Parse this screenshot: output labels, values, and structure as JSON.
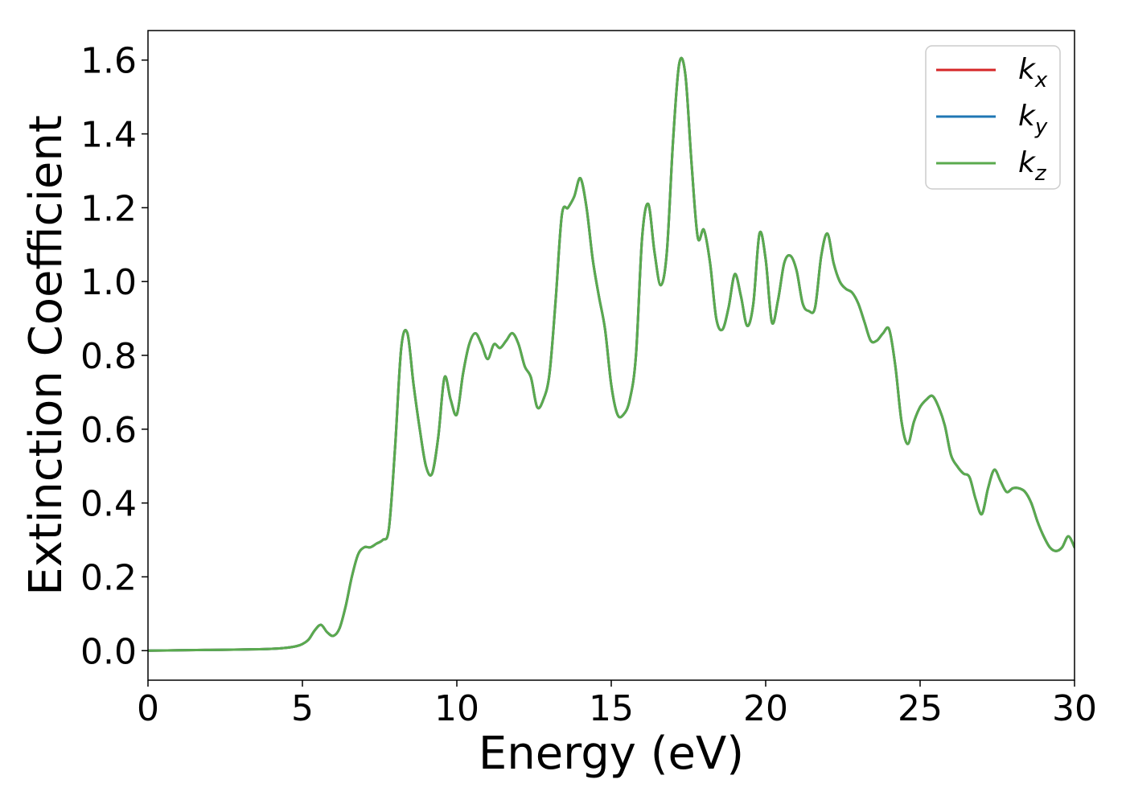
{
  "chart_data": {
    "type": "line",
    "title": "",
    "xlabel": "Energy (eV)",
    "ylabel": "Extinction Coefficient",
    "xlim": [
      0,
      30
    ],
    "ylim": [
      -0.08,
      1.68
    ],
    "xticks": [
      0,
      5,
      10,
      15,
      20,
      25,
      30
    ],
    "xtick_labels": [
      "0",
      "5",
      "10",
      "15",
      "20",
      "25",
      "30"
    ],
    "yticks": [
      0.0,
      0.2,
      0.4,
      0.6,
      0.8,
      1.0,
      1.2,
      1.4,
      1.6
    ],
    "ytick_labels": [
      "0.0",
      "0.2",
      "0.4",
      "0.6",
      "0.8",
      "1.0",
      "1.2",
      "1.4",
      "1.6"
    ],
    "grid": false,
    "legend_position": "top-right",
    "series": [
      {
        "name": "k_x",
        "label_base": "k",
        "label_sub": "x",
        "color": "#d62728",
        "x": [
          0,
          1,
          2,
          3,
          4,
          4.5,
          4.8,
          5.0,
          5.2,
          5.4,
          5.6,
          5.8,
          6.0,
          6.2,
          6.4,
          6.6,
          6.8,
          7.0,
          7.2,
          7.4,
          7.6,
          7.8,
          8.0,
          8.2,
          8.4,
          8.6,
          8.8,
          9.0,
          9.2,
          9.4,
          9.6,
          9.8,
          10.0,
          10.2,
          10.4,
          10.6,
          10.8,
          11.0,
          11.2,
          11.4,
          11.6,
          11.8,
          12.0,
          12.2,
          12.4,
          12.6,
          12.8,
          13.0,
          13.2,
          13.4,
          13.6,
          13.8,
          14.0,
          14.2,
          14.4,
          14.6,
          14.8,
          15.0,
          15.2,
          15.4,
          15.6,
          15.8,
          16.0,
          16.2,
          16.4,
          16.6,
          16.8,
          17.0,
          17.2,
          17.4,
          17.6,
          17.8,
          18.0,
          18.2,
          18.4,
          18.6,
          18.8,
          19.0,
          19.2,
          19.4,
          19.6,
          19.8,
          20.0,
          20.2,
          20.4,
          20.6,
          20.8,
          21.0,
          21.2,
          21.4,
          21.6,
          21.8,
          22.0,
          22.2,
          22.4,
          22.6,
          22.8,
          23.0,
          23.2,
          23.4,
          23.6,
          23.8,
          24.0,
          24.2,
          24.4,
          24.6,
          24.8,
          25.0,
          25.2,
          25.4,
          25.6,
          25.8,
          26.0,
          26.2,
          26.4,
          26.6,
          26.8,
          27.0,
          27.2,
          27.4,
          27.6,
          27.8,
          28.0,
          28.2,
          28.4,
          28.6,
          28.8,
          29.0,
          29.2,
          29.4,
          29.6,
          29.8,
          30.0
        ],
        "y": [
          0.0,
          0.001,
          0.002,
          0.003,
          0.005,
          0.008,
          0.012,
          0.018,
          0.03,
          0.055,
          0.07,
          0.05,
          0.04,
          0.06,
          0.12,
          0.2,
          0.26,
          0.28,
          0.28,
          0.29,
          0.3,
          0.33,
          0.55,
          0.82,
          0.86,
          0.72,
          0.6,
          0.5,
          0.48,
          0.58,
          0.74,
          0.68,
          0.64,
          0.75,
          0.83,
          0.86,
          0.83,
          0.79,
          0.83,
          0.82,
          0.84,
          0.86,
          0.83,
          0.77,
          0.74,
          0.66,
          0.68,
          0.75,
          0.95,
          1.18,
          1.2,
          1.23,
          1.28,
          1.2,
          1.06,
          0.96,
          0.87,
          0.72,
          0.64,
          0.64,
          0.68,
          0.8,
          1.12,
          1.21,
          1.08,
          0.99,
          1.08,
          1.38,
          1.59,
          1.56,
          1.32,
          1.12,
          1.14,
          1.05,
          0.9,
          0.87,
          0.93,
          1.02,
          0.96,
          0.88,
          0.94,
          1.13,
          1.06,
          0.89,
          0.95,
          1.05,
          1.07,
          1.03,
          0.94,
          0.92,
          0.93,
          1.07,
          1.13,
          1.05,
          1.0,
          0.98,
          0.97,
          0.94,
          0.89,
          0.84,
          0.84,
          0.86,
          0.87,
          0.77,
          0.62,
          0.56,
          0.62,
          0.66,
          0.68,
          0.69,
          0.66,
          0.61,
          0.53,
          0.5,
          0.48,
          0.47,
          0.41,
          0.37,
          0.44,
          0.49,
          0.46,
          0.43,
          0.44,
          0.44,
          0.43,
          0.4,
          0.35,
          0.31,
          0.28,
          0.27,
          0.28,
          0.31,
          0.28
        ]
      },
      {
        "name": "k_y",
        "label_base": "k",
        "label_sub": "y",
        "color": "#1f77b4",
        "x": [
          0,
          1,
          2,
          3,
          4,
          4.5,
          4.8,
          5.0,
          5.2,
          5.4,
          5.6,
          5.8,
          6.0,
          6.2,
          6.4,
          6.6,
          6.8,
          7.0,
          7.2,
          7.4,
          7.6,
          7.8,
          8.0,
          8.2,
          8.4,
          8.6,
          8.8,
          9.0,
          9.2,
          9.4,
          9.6,
          9.8,
          10.0,
          10.2,
          10.4,
          10.6,
          10.8,
          11.0,
          11.2,
          11.4,
          11.6,
          11.8,
          12.0,
          12.2,
          12.4,
          12.6,
          12.8,
          13.0,
          13.2,
          13.4,
          13.6,
          13.8,
          14.0,
          14.2,
          14.4,
          14.6,
          14.8,
          15.0,
          15.2,
          15.4,
          15.6,
          15.8,
          16.0,
          16.2,
          16.4,
          16.6,
          16.8,
          17.0,
          17.2,
          17.4,
          17.6,
          17.8,
          18.0,
          18.2,
          18.4,
          18.6,
          18.8,
          19.0,
          19.2,
          19.4,
          19.6,
          19.8,
          20.0,
          20.2,
          20.4,
          20.6,
          20.8,
          21.0,
          21.2,
          21.4,
          21.6,
          21.8,
          22.0,
          22.2,
          22.4,
          22.6,
          22.8,
          23.0,
          23.2,
          23.4,
          23.6,
          23.8,
          24.0,
          24.2,
          24.4,
          24.6,
          24.8,
          25.0,
          25.2,
          25.4,
          25.6,
          25.8,
          26.0,
          26.2,
          26.4,
          26.6,
          26.8,
          27.0,
          27.2,
          27.4,
          27.6,
          27.8,
          28.0,
          28.2,
          28.4,
          28.6,
          28.8,
          29.0,
          29.2,
          29.4,
          29.6,
          29.8,
          30.0
        ],
        "y": [
          0.0,
          0.001,
          0.002,
          0.003,
          0.005,
          0.008,
          0.012,
          0.018,
          0.03,
          0.055,
          0.07,
          0.05,
          0.04,
          0.06,
          0.12,
          0.2,
          0.26,
          0.28,
          0.28,
          0.29,
          0.3,
          0.33,
          0.55,
          0.82,
          0.86,
          0.72,
          0.6,
          0.5,
          0.48,
          0.58,
          0.74,
          0.68,
          0.64,
          0.75,
          0.83,
          0.86,
          0.83,
          0.79,
          0.83,
          0.82,
          0.84,
          0.86,
          0.83,
          0.77,
          0.74,
          0.66,
          0.68,
          0.75,
          0.95,
          1.18,
          1.2,
          1.23,
          1.28,
          1.2,
          1.06,
          0.96,
          0.87,
          0.72,
          0.64,
          0.64,
          0.68,
          0.8,
          1.12,
          1.21,
          1.08,
          0.99,
          1.08,
          1.38,
          1.59,
          1.56,
          1.32,
          1.12,
          1.14,
          1.05,
          0.9,
          0.87,
          0.93,
          1.02,
          0.96,
          0.88,
          0.94,
          1.13,
          1.06,
          0.89,
          0.95,
          1.05,
          1.07,
          1.03,
          0.94,
          0.92,
          0.93,
          1.07,
          1.13,
          1.05,
          1.0,
          0.98,
          0.97,
          0.94,
          0.89,
          0.84,
          0.84,
          0.86,
          0.87,
          0.77,
          0.62,
          0.56,
          0.62,
          0.66,
          0.68,
          0.69,
          0.66,
          0.61,
          0.53,
          0.5,
          0.48,
          0.47,
          0.41,
          0.37,
          0.44,
          0.49,
          0.46,
          0.43,
          0.44,
          0.44,
          0.43,
          0.4,
          0.35,
          0.31,
          0.28,
          0.27,
          0.28,
          0.31,
          0.28
        ]
      },
      {
        "name": "k_z",
        "label_base": "k",
        "label_sub": "z",
        "color": "#5aaa4e",
        "x": [
          0,
          1,
          2,
          3,
          4,
          4.5,
          4.8,
          5.0,
          5.2,
          5.4,
          5.6,
          5.8,
          6.0,
          6.2,
          6.4,
          6.6,
          6.8,
          7.0,
          7.2,
          7.4,
          7.6,
          7.8,
          8.0,
          8.2,
          8.4,
          8.6,
          8.8,
          9.0,
          9.2,
          9.4,
          9.6,
          9.8,
          10.0,
          10.2,
          10.4,
          10.6,
          10.8,
          11.0,
          11.2,
          11.4,
          11.6,
          11.8,
          12.0,
          12.2,
          12.4,
          12.6,
          12.8,
          13.0,
          13.2,
          13.4,
          13.6,
          13.8,
          14.0,
          14.2,
          14.4,
          14.6,
          14.8,
          15.0,
          15.2,
          15.4,
          15.6,
          15.8,
          16.0,
          16.2,
          16.4,
          16.6,
          16.8,
          17.0,
          17.2,
          17.4,
          17.6,
          17.8,
          18.0,
          18.2,
          18.4,
          18.6,
          18.8,
          19.0,
          19.2,
          19.4,
          19.6,
          19.8,
          20.0,
          20.2,
          20.4,
          20.6,
          20.8,
          21.0,
          21.2,
          21.4,
          21.6,
          21.8,
          22.0,
          22.2,
          22.4,
          22.6,
          22.8,
          23.0,
          23.2,
          23.4,
          23.6,
          23.8,
          24.0,
          24.2,
          24.4,
          24.6,
          24.8,
          25.0,
          25.2,
          25.4,
          25.6,
          25.8,
          26.0,
          26.2,
          26.4,
          26.6,
          26.8,
          27.0,
          27.2,
          27.4,
          27.6,
          27.8,
          28.0,
          28.2,
          28.4,
          28.6,
          28.8,
          29.0,
          29.2,
          29.4,
          29.6,
          29.8,
          30.0
        ],
        "y": [
          0.0,
          0.001,
          0.002,
          0.003,
          0.005,
          0.008,
          0.012,
          0.018,
          0.03,
          0.055,
          0.07,
          0.05,
          0.04,
          0.06,
          0.12,
          0.2,
          0.26,
          0.28,
          0.28,
          0.29,
          0.3,
          0.33,
          0.55,
          0.82,
          0.86,
          0.72,
          0.6,
          0.5,
          0.48,
          0.58,
          0.74,
          0.68,
          0.64,
          0.75,
          0.83,
          0.86,
          0.83,
          0.79,
          0.83,
          0.82,
          0.84,
          0.86,
          0.83,
          0.77,
          0.74,
          0.66,
          0.68,
          0.75,
          0.95,
          1.18,
          1.2,
          1.23,
          1.28,
          1.2,
          1.06,
          0.96,
          0.87,
          0.72,
          0.64,
          0.64,
          0.68,
          0.8,
          1.12,
          1.21,
          1.08,
          0.99,
          1.08,
          1.38,
          1.59,
          1.56,
          1.32,
          1.12,
          1.14,
          1.05,
          0.9,
          0.87,
          0.93,
          1.02,
          0.96,
          0.88,
          0.94,
          1.13,
          1.06,
          0.89,
          0.95,
          1.05,
          1.07,
          1.03,
          0.94,
          0.92,
          0.93,
          1.07,
          1.13,
          1.05,
          1.0,
          0.98,
          0.97,
          0.94,
          0.89,
          0.84,
          0.84,
          0.86,
          0.87,
          0.77,
          0.62,
          0.56,
          0.62,
          0.66,
          0.68,
          0.69,
          0.66,
          0.61,
          0.53,
          0.5,
          0.48,
          0.47,
          0.41,
          0.37,
          0.44,
          0.49,
          0.46,
          0.43,
          0.44,
          0.44,
          0.43,
          0.4,
          0.35,
          0.31,
          0.28,
          0.27,
          0.28,
          0.31,
          0.28
        ]
      }
    ]
  }
}
